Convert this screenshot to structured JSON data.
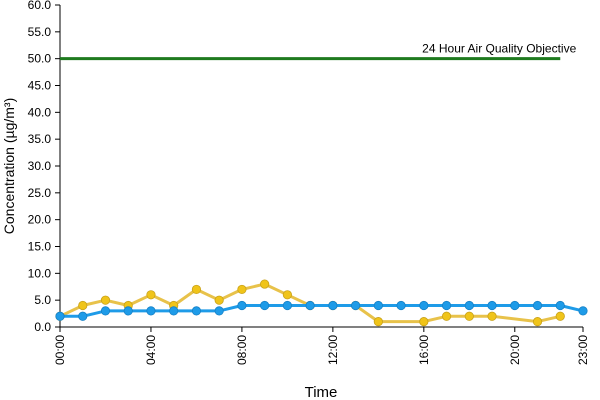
{
  "chart_data": {
    "type": "line",
    "xlabel": "Time",
    "ylabel": "Concentration (µg/m³)",
    "ylim": [
      0,
      60
    ],
    "yticks": [
      0,
      5,
      10,
      15,
      20,
      25,
      30,
      35,
      40,
      45,
      50,
      55,
      60
    ],
    "ytick_labels": [
      "0.0",
      "5.0",
      "10.0",
      "15.0",
      "20.0",
      "25.0",
      "30.0",
      "35.0",
      "40.0",
      "45.0",
      "50.0",
      "55.0",
      "60.0"
    ],
    "x_range_hours": [
      0,
      23
    ],
    "xticks": [
      0,
      4,
      8,
      12,
      16,
      20,
      23
    ],
    "xtick_labels": [
      "00:00",
      "04:00",
      "08:00",
      "12:00",
      "16:00",
      "20:00",
      "23:00"
    ],
    "grid": false,
    "objective": {
      "label": "24 Hour Air Quality Objective",
      "value": 50,
      "x_start": 0,
      "x_end": 22,
      "color": "#1e7a1e"
    },
    "series": [
      {
        "color": "#f0c419",
        "line_color": "#e8c24a",
        "x": [
          0,
          1,
          2,
          3,
          4,
          5,
          6,
          7,
          8,
          9,
          10,
          11,
          12,
          13,
          14,
          16,
          17,
          18,
          19,
          21,
          22
        ],
        "values": [
          2,
          4,
          5,
          4,
          6,
          4,
          7,
          5,
          7,
          8,
          6,
          4,
          4,
          4,
          1,
          1,
          2,
          2,
          2,
          1,
          2
        ]
      },
      {
        "color": "#1e9be8",
        "line_color": "#1e9be8",
        "x": [
          0,
          1,
          2,
          3,
          4,
          5,
          6,
          7,
          8,
          9,
          10,
          11,
          12,
          13,
          14,
          15,
          16,
          17,
          18,
          19,
          20,
          21,
          22,
          23
        ],
        "values": [
          2,
          2,
          3,
          3,
          3,
          3,
          3,
          3,
          4,
          4,
          4,
          4,
          4,
          4,
          4,
          4,
          4,
          4,
          4,
          4,
          4,
          4,
          4,
          3
        ]
      }
    ]
  }
}
